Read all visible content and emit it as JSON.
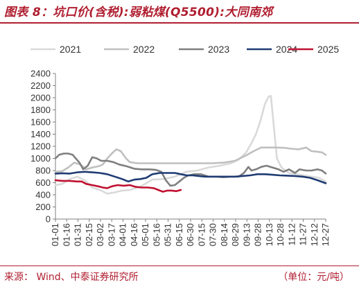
{
  "header": {
    "title": "图表 8：坑口价(含税):弱粘煤(Q5500):大同南郊"
  },
  "footer": {
    "source": "来源：  Wind、中泰证券研究所",
    "unit": "（单位：元/吨）"
  },
  "chart_data": {
    "type": "line",
    "title": "图表 8：坑口价(含税):弱粘煤(Q5500):大同南郊",
    "xlabel": "",
    "ylabel": "",
    "unit": "（单位：元/吨）",
    "ylim": [
      0,
      2400
    ],
    "yticks": [
      0,
      200,
      400,
      600,
      800,
      1000,
      1200,
      1400,
      1600,
      1800,
      2000,
      2200,
      2400
    ],
    "xlim": [
      1,
      361
    ],
    "categories": [
      "01-01",
      "01-16",
      "01-31",
      "02-15",
      "03-02",
      "03-17",
      "04-01",
      "04-16",
      "05-01",
      "05-16",
      "05-31",
      "06-15",
      "06-30",
      "07-15",
      "07-30",
      "08-14",
      "08-29",
      "09-13",
      "09-28",
      "10-13",
      "10-28",
      "11-12",
      "11-27",
      "12-12",
      "12-27"
    ],
    "x_is_day_of_year": true,
    "grid": false,
    "legend_position": "top",
    "series": [
      {
        "name": "2021",
        "color": "#d9d9d9",
        "points": [
          [
            1,
            560
          ],
          [
            10,
            580
          ],
          [
            20,
            660
          ],
          [
            30,
            700
          ],
          [
            40,
            640
          ],
          [
            50,
            520
          ],
          [
            60,
            480
          ],
          [
            70,
            420
          ],
          [
            80,
            440
          ],
          [
            90,
            470
          ],
          [
            100,
            480
          ],
          [
            115,
            540
          ],
          [
            130,
            650
          ],
          [
            145,
            660
          ],
          [
            160,
            700
          ],
          [
            175,
            780
          ],
          [
            190,
            800
          ],
          [
            205,
            850
          ],
          [
            220,
            880
          ],
          [
            235,
            920
          ],
          [
            245,
            980
          ],
          [
            255,
            1100
          ],
          [
            262,
            1250
          ],
          [
            268,
            1400
          ],
          [
            274,
            1620
          ],
          [
            280,
            1900
          ],
          [
            285,
            2020
          ],
          [
            288,
            2030
          ],
          [
            292,
            1500
          ],
          [
            296,
            1000
          ],
          [
            302,
            850
          ],
          [
            312,
            760
          ],
          [
            322,
            740
          ],
          [
            332,
            720
          ],
          [
            342,
            700
          ],
          [
            352,
            680
          ],
          [
            361,
            620
          ]
        ]
      },
      {
        "name": "2022",
        "color": "#bfbfbf",
        "points": [
          [
            1,
            780
          ],
          [
            10,
            790
          ],
          [
            18,
            850
          ],
          [
            26,
            930
          ],
          [
            34,
            900
          ],
          [
            42,
            820
          ],
          [
            50,
            850
          ],
          [
            58,
            870
          ],
          [
            64,
            900
          ],
          [
            70,
            1000
          ],
          [
            76,
            1080
          ],
          [
            82,
            1150
          ],
          [
            88,
            1120
          ],
          [
            95,
            1000
          ],
          [
            100,
            940
          ],
          [
            110,
            920
          ],
          [
            120,
            920
          ],
          [
            135,
            920
          ],
          [
            150,
            920
          ],
          [
            165,
            920
          ],
          [
            180,
            920
          ],
          [
            195,
            920
          ],
          [
            210,
            920
          ],
          [
            225,
            930
          ],
          [
            240,
            960
          ],
          [
            255,
            1050
          ],
          [
            265,
            1120
          ],
          [
            275,
            1180
          ],
          [
            285,
            1180
          ],
          [
            295,
            1180
          ],
          [
            305,
            1175
          ],
          [
            315,
            1160
          ],
          [
            325,
            1150
          ],
          [
            335,
            1180
          ],
          [
            342,
            1120
          ],
          [
            350,
            1110
          ],
          [
            356,
            1100
          ],
          [
            361,
            1060
          ]
        ]
      },
      {
        "name": "2023",
        "color": "#7f7f7f",
        "points": [
          [
            1,
            1000
          ],
          [
            6,
            1060
          ],
          [
            12,
            1080
          ],
          [
            18,
            1080
          ],
          [
            24,
            1060
          ],
          [
            28,
            1000
          ],
          [
            33,
            930
          ],
          [
            38,
            820
          ],
          [
            44,
            880
          ],
          [
            50,
            1020
          ],
          [
            56,
            1000
          ],
          [
            62,
            960
          ],
          [
            70,
            960
          ],
          [
            78,
            940
          ],
          [
            86,
            900
          ],
          [
            96,
            870
          ],
          [
            106,
            830
          ],
          [
            116,
            820
          ],
          [
            126,
            820
          ],
          [
            135,
            810
          ],
          [
            142,
            780
          ],
          [
            148,
            640
          ],
          [
            154,
            550
          ],
          [
            160,
            560
          ],
          [
            166,
            620
          ],
          [
            172,
            680
          ],
          [
            178,
            720
          ],
          [
            186,
            740
          ],
          [
            195,
            740
          ],
          [
            205,
            700
          ],
          [
            215,
            700
          ],
          [
            225,
            690
          ],
          [
            235,
            700
          ],
          [
            245,
            700
          ],
          [
            252,
            760
          ],
          [
            258,
            860
          ],
          [
            262,
            800
          ],
          [
            268,
            820
          ],
          [
            275,
            860
          ],
          [
            282,
            880
          ],
          [
            290,
            850
          ],
          [
            298,
            820
          ],
          [
            305,
            780
          ],
          [
            312,
            820
          ],
          [
            320,
            760
          ],
          [
            326,
            820
          ],
          [
            335,
            800
          ],
          [
            342,
            800
          ],
          [
            350,
            820
          ],
          [
            356,
            800
          ],
          [
            361,
            750
          ]
        ]
      },
      {
        "name": "2024",
        "color": "#1f3b73",
        "points": [
          [
            1,
            750
          ],
          [
            10,
            755
          ],
          [
            20,
            750
          ],
          [
            30,
            770
          ],
          [
            40,
            780
          ],
          [
            50,
            770
          ],
          [
            60,
            760
          ],
          [
            70,
            740
          ],
          [
            80,
            700
          ],
          [
            90,
            660
          ],
          [
            98,
            620
          ],
          [
            106,
            650
          ],
          [
            114,
            660
          ],
          [
            122,
            680
          ],
          [
            130,
            740
          ],
          [
            140,
            760
          ],
          [
            150,
            760
          ],
          [
            160,
            760
          ],
          [
            168,
            740
          ],
          [
            176,
            720
          ],
          [
            184,
            720
          ],
          [
            192,
            710
          ],
          [
            200,
            700
          ],
          [
            210,
            700
          ],
          [
            220,
            700
          ],
          [
            230,
            700
          ],
          [
            240,
            700
          ],
          [
            250,
            710
          ],
          [
            260,
            720
          ],
          [
            270,
            740
          ],
          [
            280,
            740
          ],
          [
            290,
            730
          ],
          [
            300,
            720
          ],
          [
            310,
            715
          ],
          [
            320,
            710
          ],
          [
            330,
            700
          ],
          [
            340,
            680
          ],
          [
            350,
            640
          ],
          [
            361,
            590
          ]
        ]
      },
      {
        "name": "2025",
        "color": "#c0102f",
        "points": [
          [
            1,
            640
          ],
          [
            10,
            630
          ],
          [
            20,
            630
          ],
          [
            30,
            620
          ],
          [
            36,
            620
          ],
          [
            42,
            580
          ],
          [
            50,
            560
          ],
          [
            58,
            540
          ],
          [
            64,
            520
          ],
          [
            70,
            510
          ],
          [
            76,
            540
          ],
          [
            84,
            560
          ],
          [
            92,
            550
          ],
          [
            100,
            560
          ],
          [
            108,
            530
          ],
          [
            116,
            520
          ],
          [
            124,
            520
          ],
          [
            132,
            510
          ],
          [
            138,
            480
          ],
          [
            144,
            450
          ],
          [
            150,
            470
          ],
          [
            156,
            470
          ],
          [
            162,
            460
          ],
          [
            168,
            480
          ]
        ]
      }
    ]
  }
}
